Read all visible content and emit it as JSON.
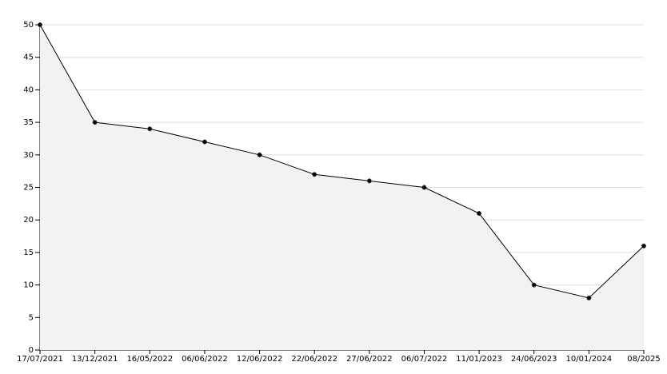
{
  "chart_data": {
    "type": "area",
    "categories": [
      "17/07/2021",
      "13/12/2021",
      "16/05/2022",
      "06/06/2022",
      "12/06/2022",
      "22/06/2022",
      "27/06/2022",
      "06/07/2022",
      "11/01/2023",
      "24/06/2023",
      "10/01/2024",
      "08/2025"
    ],
    "values": [
      50,
      35,
      34,
      32,
      30,
      27,
      26,
      25,
      21,
      10,
      8,
      16
    ],
    "color": "#000000",
    "fill": "#f2f2f2",
    "ylim": [
      0,
      50
    ],
    "yticks": [
      0,
      5,
      10,
      15,
      20,
      25,
      30,
      35,
      40,
      45,
      50
    ],
    "grid": true
  }
}
